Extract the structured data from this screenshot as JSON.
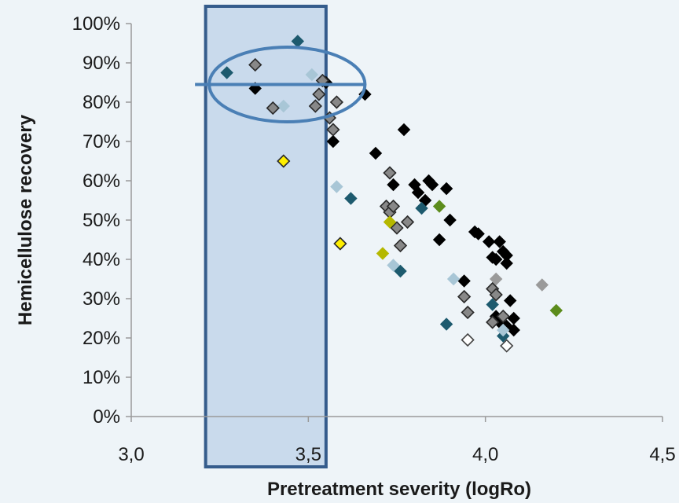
{
  "chart_data": {
    "type": "scatter",
    "xlabel": "Pretreatment severity (logRo)",
    "ylabel": "Hemicellulose recovery",
    "xlim": [
      3.0,
      4.5
    ],
    "ylim": [
      0,
      1.0
    ],
    "x_ticks": [
      "3,0",
      "3,5",
      "4,0",
      "4,5"
    ],
    "y_ticks": [
      "0%",
      "10%",
      "20%",
      "30%",
      "40%",
      "50%",
      "60%",
      "70%",
      "80%",
      "90%",
      "100%"
    ],
    "grid": false,
    "legend": "none",
    "highlight_band": {
      "x_range": [
        3.21,
        3.55
      ],
      "y_range": [
        0,
        1.05
      ],
      "color": "#c9daec",
      "border": "#355c8c"
    },
    "highlight_ellipse": {
      "cx": 3.44,
      "cy": 0.845,
      "rx": 0.22,
      "ry": 0.095,
      "color": "#4a7fb5"
    },
    "reference_line": {
      "y": 0.845,
      "x_range": [
        3.18,
        3.66
      ],
      "color": "#4a7fb5"
    },
    "series": [
      {
        "color": "#000000",
        "fill": "solid",
        "points": [
          [
            3.35,
            0.835
          ],
          [
            3.55,
            0.85
          ],
          [
            3.57,
            0.7
          ],
          [
            3.66,
            0.82
          ],
          [
            3.69,
            0.67
          ],
          [
            3.73,
            0.52
          ],
          [
            3.74,
            0.59
          ],
          [
            3.77,
            0.73
          ],
          [
            3.8,
            0.59
          ],
          [
            3.81,
            0.57
          ],
          [
            3.83,
            0.55
          ],
          [
            3.84,
            0.6
          ],
          [
            3.85,
            0.59
          ],
          [
            3.87,
            0.45
          ],
          [
            3.89,
            0.58
          ],
          [
            3.9,
            0.5
          ],
          [
            3.94,
            0.345
          ],
          [
            3.97,
            0.47
          ],
          [
            3.98,
            0.465
          ],
          [
            4.01,
            0.445
          ],
          [
            4.02,
            0.405
          ],
          [
            4.03,
            0.4
          ],
          [
            4.03,
            0.255
          ],
          [
            4.04,
            0.445
          ],
          [
            4.04,
            0.24
          ],
          [
            4.05,
            0.42
          ],
          [
            4.06,
            0.41
          ],
          [
            4.06,
            0.39
          ],
          [
            4.06,
            0.23
          ],
          [
            4.07,
            0.295
          ],
          [
            4.08,
            0.25
          ],
          [
            4.08,
            0.22
          ]
        ]
      },
      {
        "color": "#1d5a6e",
        "fill": "solid",
        "points": [
          [
            3.27,
            0.875
          ],
          [
            3.47,
            0.955
          ],
          [
            3.62,
            0.555
          ],
          [
            3.76,
            0.37
          ],
          [
            3.82,
            0.53
          ],
          [
            3.89,
            0.235
          ],
          [
            4.02,
            0.285
          ],
          [
            4.05,
            0.205
          ]
        ]
      },
      {
        "color": "#a8c6d6",
        "fill": "solid",
        "points": [
          [
            3.43,
            0.79
          ],
          [
            3.51,
            0.87
          ],
          [
            3.58,
            0.585
          ],
          [
            3.74,
            0.385
          ],
          [
            3.91,
            0.35
          ],
          [
            4.05,
            0.22
          ]
        ]
      },
      {
        "color": "#9a9a9a",
        "fill": "solid",
        "points": [
          [
            4.03,
            0.35
          ],
          [
            4.16,
            0.335
          ]
        ]
      },
      {
        "color": "#888888",
        "fill": "outlined",
        "points": [
          [
            3.35,
            0.895
          ],
          [
            3.4,
            0.785
          ],
          [
            3.52,
            0.79
          ],
          [
            3.53,
            0.82
          ],
          [
            3.54,
            0.855
          ],
          [
            3.56,
            0.76
          ],
          [
            3.57,
            0.73
          ],
          [
            3.58,
            0.8
          ],
          [
            3.72,
            0.535
          ],
          [
            3.73,
            0.52
          ],
          [
            3.73,
            0.62
          ],
          [
            3.74,
            0.535
          ],
          [
            3.75,
            0.48
          ],
          [
            3.76,
            0.435
          ],
          [
            3.78,
            0.495
          ],
          [
            3.94,
            0.305
          ],
          [
            3.95,
            0.265
          ],
          [
            4.02,
            0.325
          ],
          [
            4.02,
            0.24
          ],
          [
            4.03,
            0.31
          ],
          [
            4.05,
            0.255
          ]
        ]
      },
      {
        "color": "#444444",
        "fill": "outlined-white",
        "points": [
          [
            3.95,
            0.195
          ],
          [
            4.06,
            0.18
          ]
        ]
      },
      {
        "color": "#ffef00",
        "fill": "outlined",
        "points": [
          [
            3.43,
            0.65
          ],
          [
            3.59,
            0.44
          ]
        ]
      },
      {
        "color": "#b5b800",
        "fill": "solid",
        "points": [
          [
            3.71,
            0.415
          ],
          [
            3.73,
            0.495
          ]
        ]
      },
      {
        "color": "#5c8c1c",
        "fill": "solid",
        "points": [
          [
            3.87,
            0.535
          ],
          [
            4.2,
            0.27
          ]
        ]
      }
    ]
  }
}
